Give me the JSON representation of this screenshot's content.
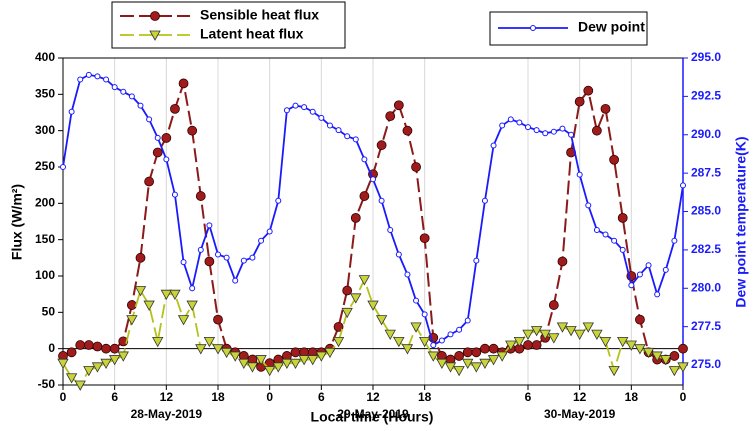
{
  "chart_data": {
    "type": "line",
    "x_label": "Local time (Hours)",
    "y_label": "Flux (W/m²)",
    "y2_label": "Dew point temperature(K)",
    "day_labels": [
      {
        "x": 12,
        "label": "28-May-2019"
      },
      {
        "x": 36,
        "label": "29-May-2019"
      },
      {
        "x": 60,
        "label": "30-May-2019"
      }
    ],
    "x": [
      0,
      1,
      2,
      3,
      4,
      5,
      6,
      7,
      8,
      9,
      10,
      11,
      12,
      13,
      14,
      15,
      16,
      17,
      18,
      19,
      20,
      21,
      22,
      23,
      24,
      25,
      26,
      27,
      28,
      29,
      30,
      31,
      32,
      33,
      34,
      35,
      36,
      37,
      38,
      39,
      40,
      41,
      42,
      43,
      44,
      45,
      46,
      47,
      48,
      49,
      50,
      51,
      52,
      53,
      54,
      55,
      56,
      57,
      58,
      59,
      60,
      61,
      62,
      63,
      64,
      65,
      66,
      67,
      68,
      69,
      70,
      71,
      72
    ],
    "series": [
      {
        "name": "Sensible heat flux",
        "color": "#8b1a1a",
        "marker_color": "#a01c1c",
        "values": [
          -10,
          -5,
          5,
          5,
          3,
          0,
          0,
          10,
          60,
          125,
          230,
          270,
          290,
          330,
          365,
          300,
          210,
          120,
          40,
          0,
          -5,
          -10,
          -15,
          -25,
          -20,
          -15,
          -10,
          -5,
          -5,
          -5,
          -5,
          0,
          30,
          80,
          180,
          210,
          240,
          280,
          320,
          335,
          300,
          250,
          152,
          15,
          -10,
          -15,
          -10,
          -5,
          -5,
          0,
          0,
          -5,
          0,
          0,
          5,
          5,
          15,
          60,
          120,
          270,
          340,
          355,
          300,
          330,
          260,
          180,
          100,
          40,
          -5,
          -15,
          -15,
          -10,
          0
        ]
      },
      {
        "name": "Latent heat flux",
        "color": "#b5c21a",
        "marker_color": "#c8d43a",
        "values": [
          -20,
          -40,
          -50,
          -30,
          -25,
          -20,
          -15,
          -10,
          40,
          80,
          60,
          10,
          75,
          75,
          40,
          60,
          0,
          10,
          0,
          -5,
          -10,
          -20,
          -25,
          -15,
          -30,
          -25,
          -20,
          -20,
          -15,
          -15,
          -10,
          -5,
          10,
          50,
          70,
          95,
          60,
          40,
          20,
          10,
          0,
          30,
          10,
          -10,
          -20,
          -25,
          -30,
          -20,
          -25,
          -20,
          -15,
          -10,
          5,
          10,
          20,
          25,
          20,
          15,
          30,
          25,
          20,
          30,
          20,
          10,
          -30,
          10,
          5,
          0,
          -5,
          -10,
          -15,
          -30,
          -25
        ]
      },
      {
        "name": "Dew point",
        "color": "#1a1aff",
        "axis": "y2",
        "values": [
          287.9,
          291.5,
          293.6,
          293.9,
          293.8,
          293.6,
          293.1,
          292.8,
          292.5,
          291.9,
          291.0,
          289.8,
          288.4,
          286.1,
          281.7,
          280.0,
          282.5,
          284.1,
          282.2,
          282.0,
          280.5,
          281.8,
          282.0,
          283.1,
          283.7,
          285.7,
          291.6,
          291.9,
          291.8,
          291.5,
          291.1,
          290.6,
          290.3,
          289.9,
          289.7,
          288.4,
          287.1,
          285.7,
          283.8,
          282.2,
          280.9,
          279.2,
          278.3,
          276.3,
          276.6,
          277.0,
          277.3,
          277.9,
          281.8,
          285.7,
          289.3,
          290.6,
          291.0,
          290.8,
          290.5,
          290.3,
          290.1,
          290.2,
          290.4,
          290.0,
          287.4,
          285.4,
          283.8,
          283.5,
          283.1,
          282.5,
          280.2,
          280.9,
          281.5,
          279.6,
          281.2,
          283.1,
          286.7
        ]
      }
    ],
    "xlim": [
      0,
      72
    ],
    "xticks": [
      0,
      6,
      12,
      18,
      {
        "value": 24,
        "label": "0"
      },
      {
        "value": 30,
        "label": "6"
      },
      {
        "value": 36,
        "label": "12"
      },
      {
        "value": 42,
        "label": "18"
      },
      {
        "value": 54,
        "label": "6"
      },
      {
        "value": 60,
        "label": "12"
      },
      {
        "value": 66,
        "label": "18"
      },
      {
        "value": 72,
        "label": "0"
      }
    ],
    "ylim": [
      -50,
      400
    ],
    "yticks": [
      -50,
      0,
      50,
      100,
      150,
      200,
      250,
      300,
      350,
      400
    ],
    "y2lim": [
      273.7,
      295
    ],
    "y2ticks": [
      {
        "value": 275,
        "label": "275.0"
      },
      277.5,
      {
        "value": 280,
        "label": "280.0"
      },
      282.5,
      {
        "value": 285,
        "label": "285.0"
      },
      287.5,
      {
        "value": 290,
        "label": "290.0"
      },
      292.5,
      {
        "value": 295,
        "label": "295.0"
      }
    ],
    "grid_x": true,
    "zero_line": true
  }
}
